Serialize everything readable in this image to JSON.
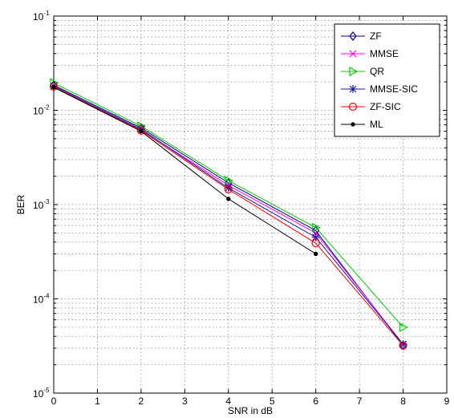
{
  "chart_data": {
    "type": "line",
    "xlabel": "SNR in dB",
    "ylabel": "BER",
    "xlim": [
      0,
      9
    ],
    "ylim": [
      1e-05,
      0.1
    ],
    "yscale": "log",
    "grid": true,
    "x_ticks": [
      "0",
      "1",
      "2",
      "3",
      "4",
      "5",
      "6",
      "7",
      "8",
      "9"
    ],
    "y_ticks": [
      {
        "base": "10",
        "exp": "-5",
        "value": 1e-05
      },
      {
        "base": "10",
        "exp": "-4",
        "value": 0.0001
      },
      {
        "base": "10",
        "exp": "-3",
        "value": 0.001
      },
      {
        "base": "10",
        "exp": "-2",
        "value": 0.01
      },
      {
        "base": "10",
        "exp": "-1",
        "value": 0.1
      }
    ],
    "legend_position": "top-right",
    "x": [
      0,
      2,
      4,
      6,
      8
    ],
    "series": [
      {
        "name": "ZF",
        "color": "#00008b",
        "marker": "diamond",
        "values": [
          0.0185,
          0.0065,
          0.0017,
          0.00053,
          3.2e-05
        ]
      },
      {
        "name": "MMSE",
        "color": "#ff00ff",
        "marker": "x",
        "values": [
          0.018,
          0.0062,
          0.0016,
          0.0005,
          3.3e-05
        ]
      },
      {
        "name": "QR",
        "color": "#00cc00",
        "marker": "triangle-right",
        "values": [
          0.0195,
          0.0068,
          0.0018,
          0.00057,
          5e-05
        ]
      },
      {
        "name": "MMSE-SIC",
        "color": "#1a1aa6",
        "marker": "star",
        "values": [
          0.018,
          0.0063,
          0.0015,
          0.00045,
          3.3e-05
        ]
      },
      {
        "name": "ZF-SIC",
        "color": "#ff0000",
        "marker": "circle",
        "values": [
          0.0178,
          0.0061,
          0.00145,
          0.00039,
          3.2e-05
        ]
      },
      {
        "name": "ML",
        "color": "#000000",
        "marker": "dot",
        "values": [
          0.0175,
          0.006,
          0.00115,
          0.0003,
          null
        ]
      }
    ]
  }
}
